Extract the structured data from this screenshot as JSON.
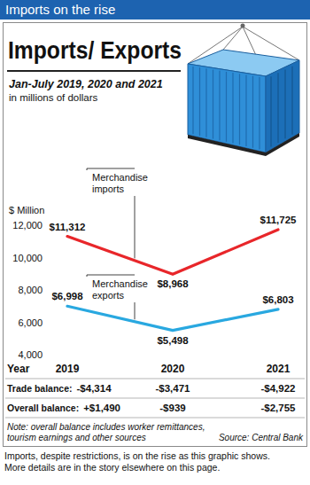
{
  "banner": "Imports on the rise",
  "chart_data": {
    "type": "line",
    "title": "Imports/ Exports",
    "subtitle": [
      "Jan-July 2019, 2020 and 2021",
      "in millions of dollars"
    ],
    "x_label": "Year",
    "y_label": "$ Million",
    "categories": [
      "2019",
      "2020",
      "2021"
    ],
    "series": [
      {
        "name": "Merchandise imports",
        "color": "#e8262a",
        "values": [
          11312,
          8968,
          11725
        ],
        "value_labels": [
          "$11,312",
          "$8,968",
          "$11,725"
        ]
      },
      {
        "name": "Merchandise exports",
        "color": "#29a8e0",
        "values": [
          6998,
          5498,
          6803
        ],
        "value_labels": [
          "$6,998",
          "$5,498",
          "$6,803"
        ]
      }
    ],
    "ylim": [
      4000,
      12000
    ],
    "yticks": [
      {
        "value": 4000,
        "label": "4,000"
      },
      {
        "value": 6000,
        "label": "6,000"
      },
      {
        "value": 8000,
        "label": "8,000"
      },
      {
        "value": 10000,
        "label": "10,000"
      },
      {
        "value": 12000,
        "label": "12,000"
      }
    ],
    "grid": false,
    "data_labels": true
  },
  "table": {
    "rows": [
      {
        "label": "Trade balance:",
        "values": [
          "-$4,314",
          "-$3,471",
          "-$4,922"
        ]
      },
      {
        "label": "Overall balance:",
        "values": [
          "+$1,490",
          "-$939",
          "-$2,755"
        ]
      }
    ]
  },
  "note": [
    "Note: overall balance includes worker remittances,",
    "tourism earnings and other sources"
  ],
  "source": "Source: Central Bank",
  "caption": [
    "Imports, despite restrictions, is on the rise as this graphic shows.",
    "More details are in the story elsewhere on this page."
  ]
}
